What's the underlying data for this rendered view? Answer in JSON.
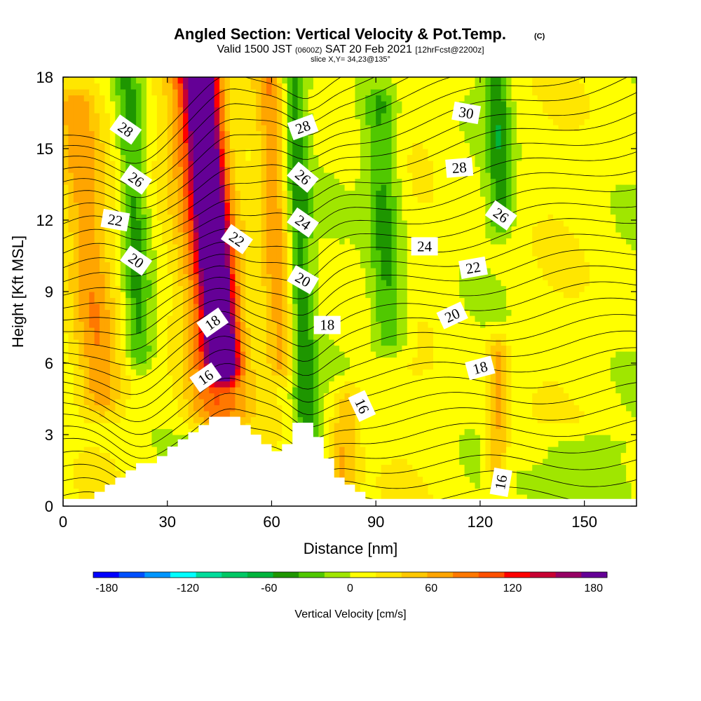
{
  "chart_data": {
    "type": "heatmap",
    "title": "Angled Section: Vertical Velocity & Pot.Temp.",
    "title_unit": "(C)",
    "subtitle_main": "Valid 1500 JST",
    "subtitle_z": "(0600Z)",
    "subtitle_date": "SAT 20 Feb 2021",
    "subtitle_fcst": "[12hrFcst@2200z]",
    "subtitle_slice": "slice X,Y= 34,23@135°",
    "xlabel": "Distance [nm]",
    "ylabel": "Height [Kft MSL]",
    "xlim": [
      0,
      165
    ],
    "ylim": [
      0,
      18
    ],
    "x_ticks": [
      "0",
      "30",
      "60",
      "90",
      "120",
      "150"
    ],
    "y_ticks": [
      "0",
      "3",
      "6",
      "9",
      "12",
      "15",
      "18"
    ],
    "colorbar": {
      "label": "Vertical Velocity [cm/s]",
      "ticks": [
        "-180",
        "-120",
        "-60",
        "0",
        "60",
        "120",
        "180"
      ],
      "range": [
        -190,
        190
      ],
      "colors": [
        "#0000ff",
        "#0050ff",
        "#0096ff",
        "#00ffff",
        "#00dc9b",
        "#00c864",
        "#00b43c",
        "#1e9600",
        "#50c800",
        "#a0e600",
        "#ffff00",
        "#ffe600",
        "#ffc800",
        "#ffa500",
        "#ff7800",
        "#ff5000",
        "#ff0000",
        "#c80032",
        "#960064",
        "#640096"
      ]
    },
    "velocity_features": [
      {
        "x": 46,
        "h0": 6.0,
        "h1": 18,
        "peak": 200,
        "width": 4.5,
        "tilt": -0.55
      },
      {
        "x": 44,
        "h0": 4.0,
        "h1": 18,
        "peak": 80,
        "width": 9,
        "tilt": -0.55
      },
      {
        "x": 22,
        "h0": 6.5,
        "h1": 18,
        "peak": -55,
        "width": 4,
        "tilt": -0.3
      },
      {
        "x": 70,
        "h0": 3.0,
        "h1": 18,
        "peak": -60,
        "width": 3.5,
        "tilt": -0.25
      },
      {
        "x": 63,
        "h0": 6.0,
        "h1": 18,
        "peak": 55,
        "width": 4,
        "tilt": -0.3
      },
      {
        "x": 11,
        "h0": 4.5,
        "h1": 17,
        "peak": 55,
        "width": 6,
        "tilt": -0.6
      },
      {
        "x": 94,
        "h0": 7.0,
        "h1": 17,
        "peak": -55,
        "width": 5,
        "tilt": -0.3
      },
      {
        "x": 126,
        "h0": 12.0,
        "h1": 18,
        "peak": -55,
        "width": 3.5,
        "tilt": -0.2
      },
      {
        "x": 125,
        "h0": 1.5,
        "h1": 6.5,
        "peak": 55,
        "width": 3,
        "tilt": 0
      },
      {
        "x": 80,
        "h0": 0.5,
        "h1": 4.5,
        "peak": 50,
        "width": 4,
        "tilt": 0.4
      },
      {
        "x": 148,
        "h0": 0.5,
        "h1": 2.5,
        "peak": -30,
        "width": 12,
        "tilt": 0
      }
    ],
    "terrain_kft": [
      [
        0,
        0.3
      ],
      [
        9,
        0.3
      ],
      [
        9,
        0.6
      ],
      [
        12,
        0.6
      ],
      [
        12,
        0.9
      ],
      [
        15,
        0.9
      ],
      [
        15,
        1.2
      ],
      [
        18,
        1.2
      ],
      [
        18,
        1.5
      ],
      [
        21,
        1.5
      ],
      [
        21,
        1.8
      ],
      [
        27,
        1.8
      ],
      [
        27,
        2.1
      ],
      [
        30,
        2.1
      ],
      [
        30,
        2.5
      ],
      [
        33,
        2.5
      ],
      [
        33,
        2.8
      ],
      [
        36,
        2.8
      ],
      [
        36,
        3.1
      ],
      [
        39,
        3.1
      ],
      [
        39,
        3.4
      ],
      [
        42,
        3.4
      ],
      [
        42,
        3.75
      ],
      [
        51,
        3.75
      ],
      [
        51,
        3.4
      ],
      [
        54,
        3.4
      ],
      [
        54,
        3.0
      ],
      [
        57,
        3.0
      ],
      [
        57,
        2.6
      ],
      [
        60,
        2.6
      ],
      [
        60,
        2.3
      ],
      [
        63,
        2.3
      ],
      [
        63,
        2.6
      ],
      [
        66,
        2.6
      ],
      [
        66,
        3.5
      ],
      [
        72,
        3.5
      ],
      [
        72,
        2.9
      ],
      [
        75,
        2.9
      ],
      [
        75,
        2.0
      ],
      [
        78,
        2.0
      ],
      [
        78,
        1.2
      ],
      [
        81,
        1.2
      ],
      [
        81,
        0.9
      ],
      [
        84,
        0.9
      ],
      [
        84,
        0.6
      ],
      [
        87,
        0.6
      ],
      [
        87,
        0.3
      ],
      [
        165,
        0.3
      ]
    ],
    "theta_labels": [
      {
        "text": "28",
        "x": 18,
        "h": 15.8,
        "rot": 35
      },
      {
        "text": "26",
        "x": 21,
        "h": 13.7,
        "rot": 35
      },
      {
        "text": "22",
        "x": 15,
        "h": 12.0,
        "rot": 10
      },
      {
        "text": "20",
        "x": 21,
        "h": 10.3,
        "rot": 35
      },
      {
        "text": "22",
        "x": 50,
        "h": 11.2,
        "rot": 35
      },
      {
        "text": "18",
        "x": 43,
        "h": 7.7,
        "rot": -35
      },
      {
        "text": "16",
        "x": 41,
        "h": 5.4,
        "rot": -35
      },
      {
        "text": "28",
        "x": 69,
        "h": 15.9,
        "rot": -20
      },
      {
        "text": "26",
        "x": 69,
        "h": 13.8,
        "rot": 40
      },
      {
        "text": "24",
        "x": 69,
        "h": 11.9,
        "rot": 35
      },
      {
        "text": "20",
        "x": 69,
        "h": 9.5,
        "rot": 30
      },
      {
        "text": "18",
        "x": 76,
        "h": 7.6,
        "rot": 0
      },
      {
        "text": "16",
        "x": 86,
        "h": 4.2,
        "rot": 65
      },
      {
        "text": "24",
        "x": 104,
        "h": 10.9,
        "rot": 0
      },
      {
        "text": "30",
        "x": 116,
        "h": 16.5,
        "rot": 10
      },
      {
        "text": "28",
        "x": 114,
        "h": 14.2,
        "rot": -5
      },
      {
        "text": "26",
        "x": 126,
        "h": 12.2,
        "rot": 35
      },
      {
        "text": "22",
        "x": 118,
        "h": 10.0,
        "rot": -10
      },
      {
        "text": "20",
        "x": 112,
        "h": 8.0,
        "rot": -25
      },
      {
        "text": "18",
        "x": 120,
        "h": 5.8,
        "rot": -15
      },
      {
        "text": "16",
        "x": 126,
        "h": 1.0,
        "rot": -80
      }
    ]
  }
}
